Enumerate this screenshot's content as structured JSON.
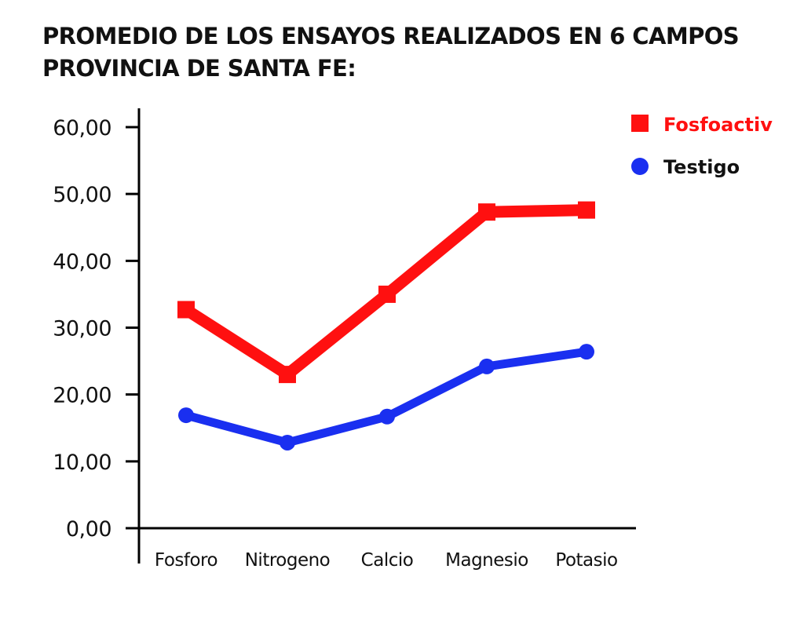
{
  "title_lines": [
    "PROMEDIO DE LOS ENSAYOS REALIZADOS EN 6 CAMPOS",
    "PROVINCIA DE SANTA FE:"
  ],
  "chart_data": {
    "type": "line",
    "title": "PROMEDIO DE LOS ENSAYOS REALIZADOS EN 6 CAMPOS PROVINCIA DE SANTA FE:",
    "xlabel": "",
    "ylabel": "",
    "categories": [
      "Fosforo",
      "Nitrogeno",
      "Calcio",
      "Magnesio",
      "Potasio"
    ],
    "ylim": [
      0,
      60
    ],
    "yticks": [
      "0,00",
      "10,00",
      "20,00",
      "30,00",
      "40,00",
      "50,00",
      "60,00"
    ],
    "grid": false,
    "legend_position": "top-right",
    "series": [
      {
        "name": "Fosfoactiv",
        "color": "#ff1010",
        "marker": "square",
        "values": [
          32.7,
          23.0,
          35.0,
          47.3,
          47.6
        ]
      },
      {
        "name": "Testigo",
        "color": "#1a2ff0",
        "marker": "circle",
        "values": [
          16.9,
          12.8,
          16.7,
          24.2,
          26.4
        ]
      }
    ]
  }
}
